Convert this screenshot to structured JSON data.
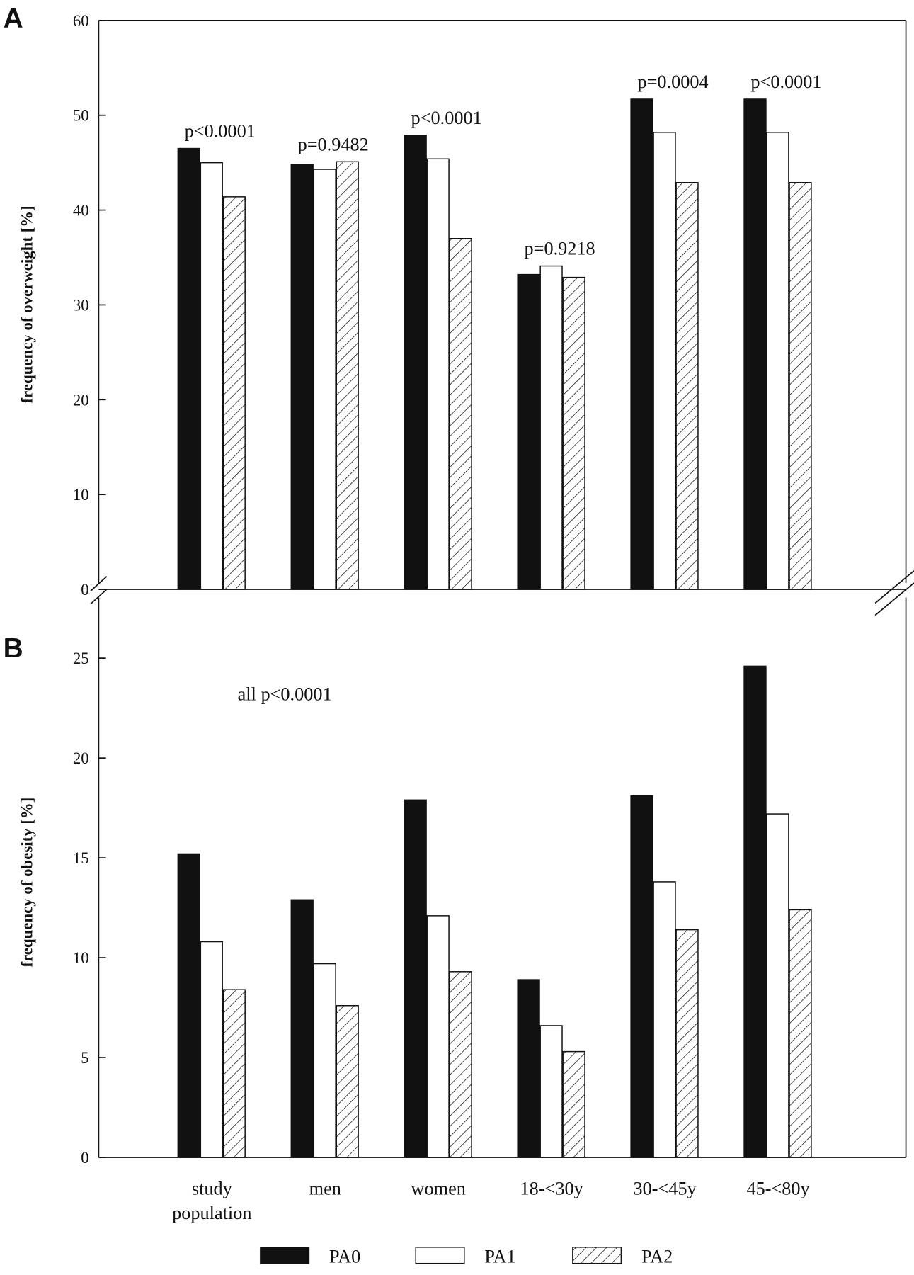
{
  "chart_data": [
    {
      "type": "bar",
      "panel_label": "A",
      "ylabel": "frequency of overweight [%]",
      "ylim": [
        0,
        60
      ],
      "yticks": [
        "0",
        "10",
        "20",
        "30",
        "40",
        "50",
        "60"
      ],
      "categories": [
        "study population",
        "men",
        "women",
        "18-<30y",
        "30-<45y",
        "45-<80y"
      ],
      "series": [
        {
          "name": "PA0",
          "values": [
            46.5,
            44.8,
            47.9,
            33.2,
            51.7,
            51.7
          ]
        },
        {
          "name": "PA1",
          "values": [
            45.0,
            44.3,
            45.4,
            34.1,
            48.2,
            48.2
          ]
        },
        {
          "name": "PA2",
          "values": [
            41.4,
            45.1,
            37.0,
            32.9,
            42.9,
            42.9
          ]
        }
      ],
      "annotations": [
        "p<0.0001",
        "p=0.9482",
        "p<0.0001",
        "p=0.9218",
        "p=0.0004",
        "p<0.0001"
      ],
      "grid": false
    },
    {
      "type": "bar",
      "panel_label": "B",
      "ylabel": "frequency of obesity [%]",
      "ylim": [
        0,
        27
      ],
      "yticks": [
        "0",
        "5",
        "10",
        "15",
        "20",
        "25"
      ],
      "categories": [
        "study population",
        "men",
        "women",
        "18-<30y",
        "30-<45y",
        "45-<80y"
      ],
      "series": [
        {
          "name": "PA0",
          "values": [
            15.2,
            12.9,
            17.9,
            8.9,
            18.1,
            24.6
          ]
        },
        {
          "name": "PA1",
          "values": [
            10.8,
            9.7,
            12.1,
            6.6,
            13.8,
            17.2
          ]
        },
        {
          "name": "PA2",
          "values": [
            8.4,
            7.6,
            9.3,
            5.3,
            11.4,
            12.4
          ]
        }
      ],
      "annotation": "all p<0.0001",
      "grid": false
    }
  ],
  "xtick_labels": [
    [
      "study",
      "population"
    ],
    [
      "men"
    ],
    [
      "women"
    ],
    [
      "18-<30y"
    ],
    [
      "30-<45y"
    ],
    [
      "45-<80y"
    ]
  ],
  "legend": {
    "placement": "bottom",
    "entries": [
      "PA0",
      "PA1",
      "PA2"
    ]
  },
  "colors": {
    "PA0": "#111111",
    "PA1": "#ffffff",
    "PA2": "hatched"
  }
}
